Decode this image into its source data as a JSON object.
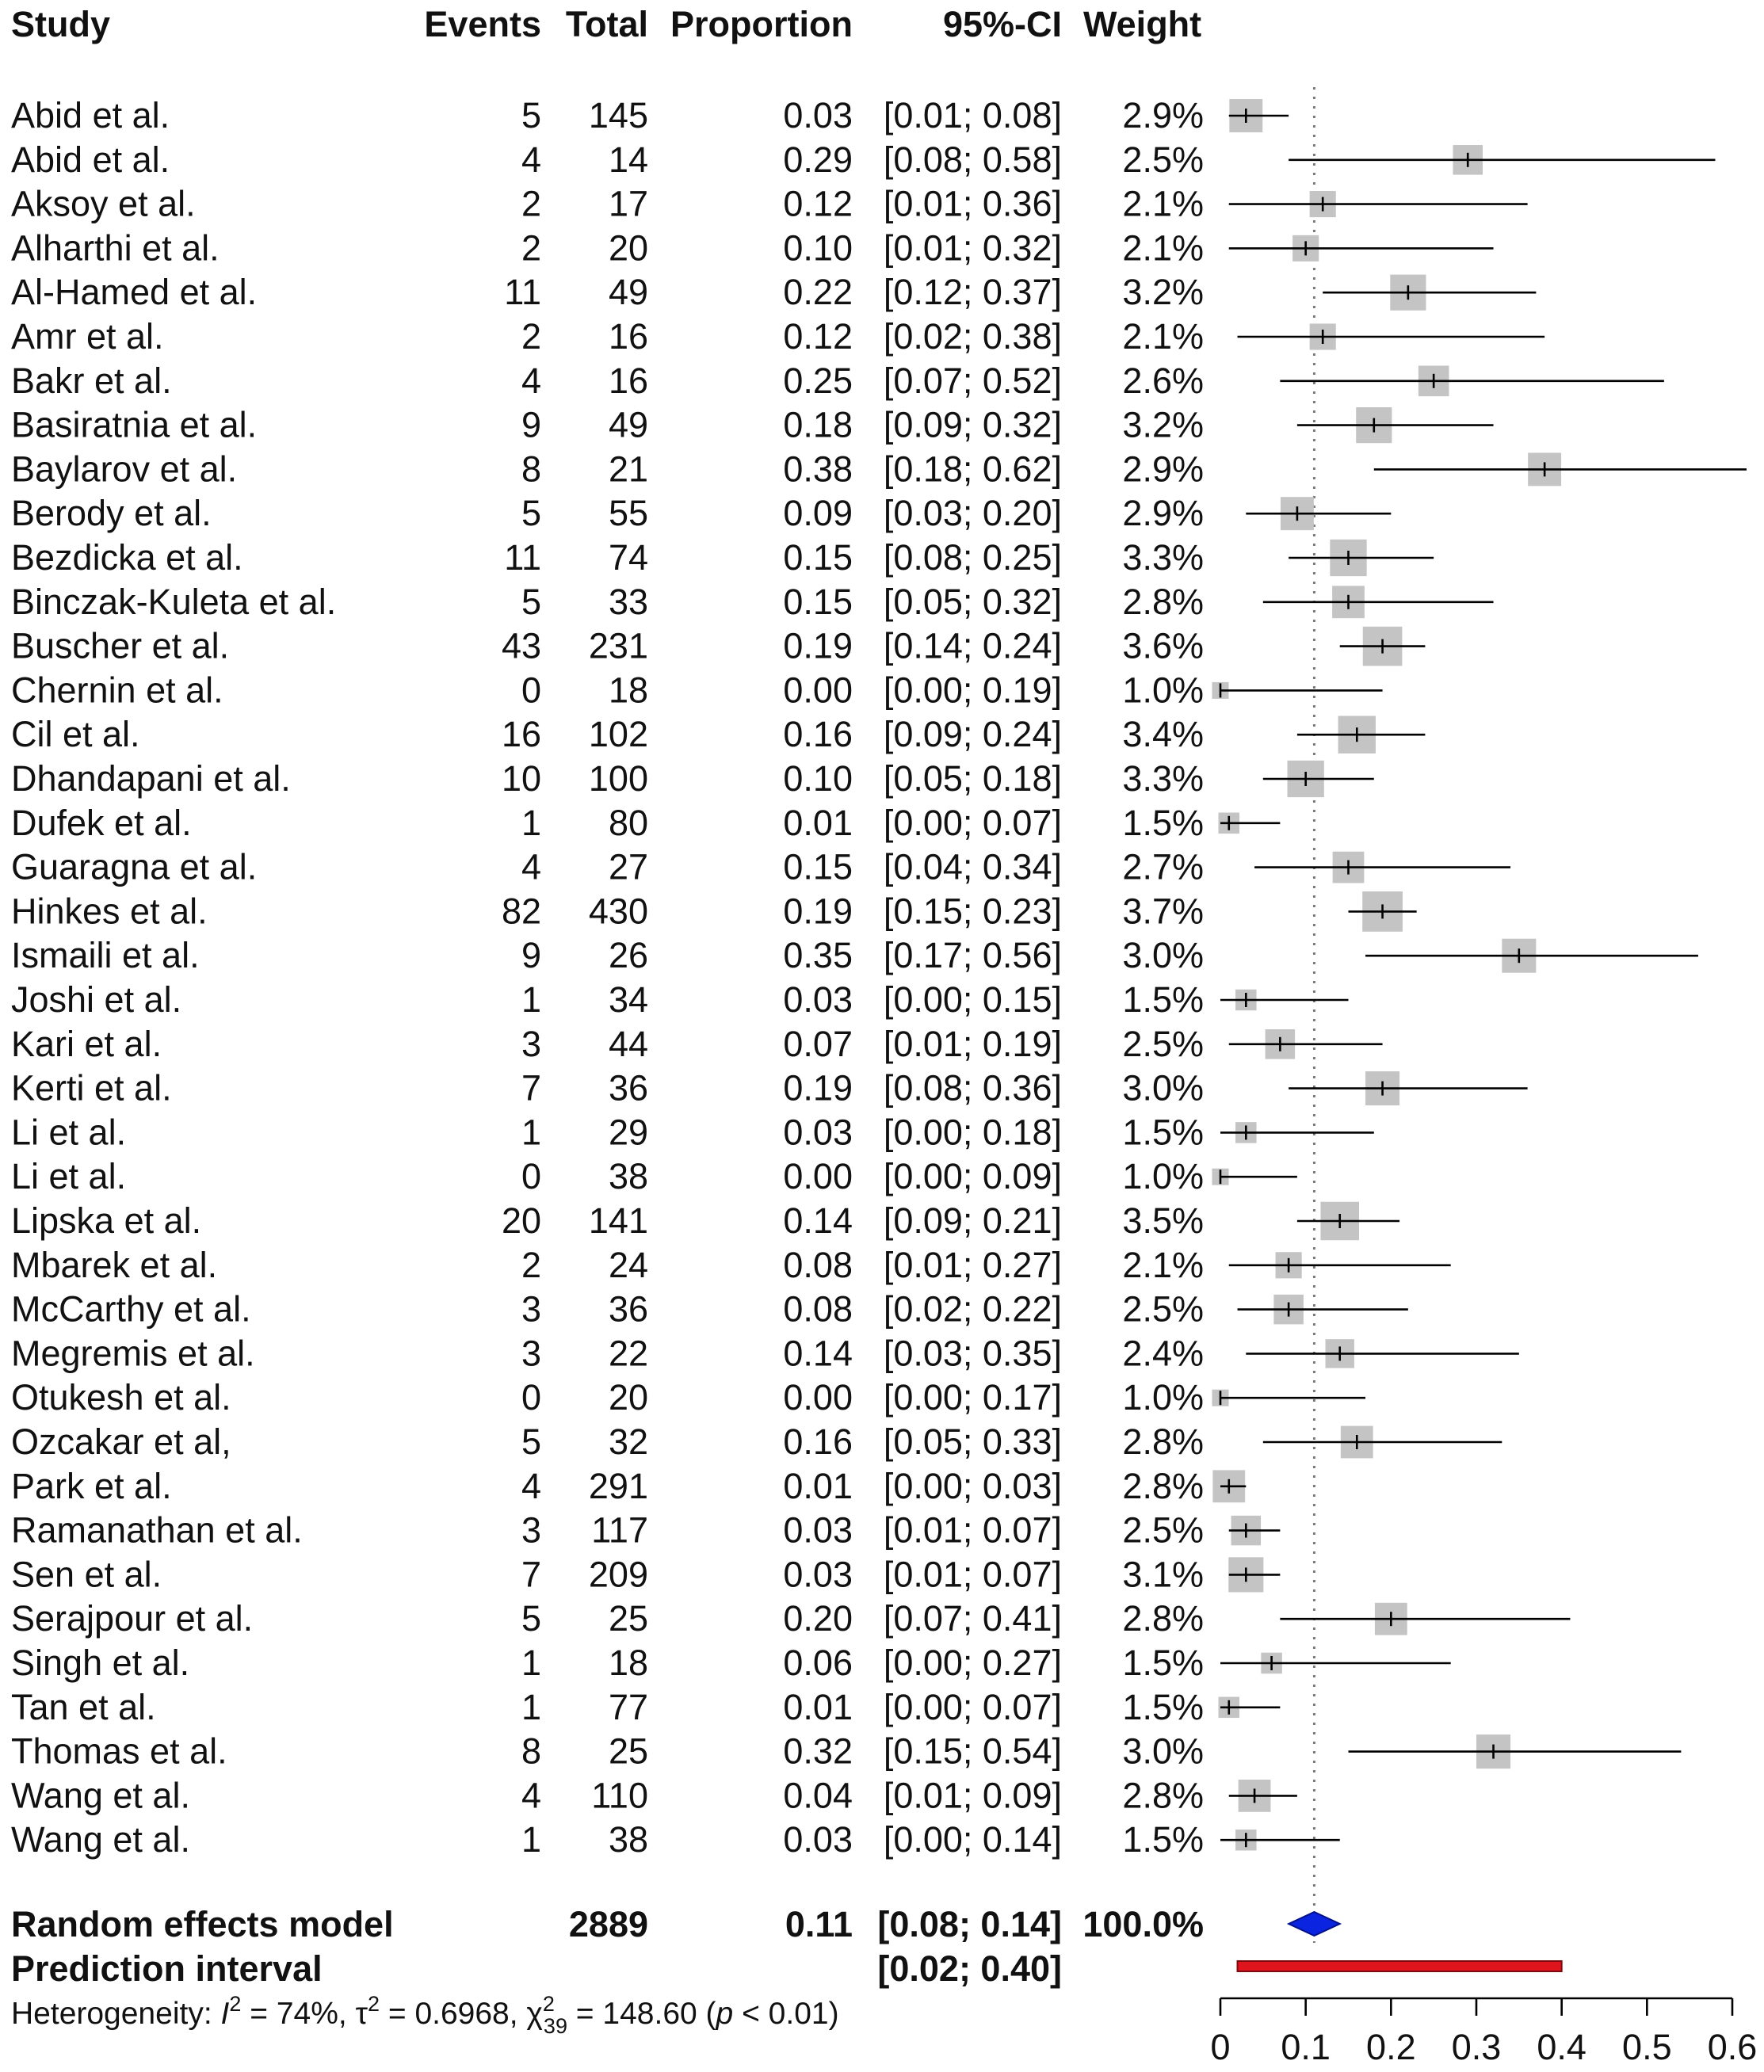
{
  "chart_data": {
    "type": "forest",
    "headers": {
      "study": "Study",
      "events": "Events",
      "total": "Total",
      "proportion": "Proportion",
      "ci": "95%-CI",
      "weight": "Weight"
    },
    "studies": [
      {
        "name": "Abid et al.",
        "events": "5",
        "total": "145",
        "prop": 0.03,
        "lo": 0.01,
        "hi": 0.08,
        "prop_text": "0.03",
        "ci_text": "[0.01; 0.08]",
        "weight_text": "2.9%",
        "weight": 2.9
      },
      {
        "name": "Abid et al.",
        "events": "4",
        "total": "14",
        "prop": 0.29,
        "lo": 0.08,
        "hi": 0.58,
        "prop_text": "0.29",
        "ci_text": "[0.08; 0.58]",
        "weight_text": "2.5%",
        "weight": 2.5
      },
      {
        "name": "Aksoy et al.",
        "events": "2",
        "total": "17",
        "prop": 0.12,
        "lo": 0.01,
        "hi": 0.36,
        "prop_text": "0.12",
        "ci_text": "[0.01; 0.36]",
        "weight_text": "2.1%",
        "weight": 2.1
      },
      {
        "name": "Alharthi et al.",
        "events": "2",
        "total": "20",
        "prop": 0.1,
        "lo": 0.01,
        "hi": 0.32,
        "prop_text": "0.10",
        "ci_text": "[0.01; 0.32]",
        "weight_text": "2.1%",
        "weight": 2.1
      },
      {
        "name": "Al-Hamed et al.",
        "events": "11",
        "total": "49",
        "prop": 0.22,
        "lo": 0.12,
        "hi": 0.37,
        "prop_text": "0.22",
        "ci_text": "[0.12; 0.37]",
        "weight_text": "3.2%",
        "weight": 3.2
      },
      {
        "name": "Amr et al.",
        "events": "2",
        "total": "16",
        "prop": 0.12,
        "lo": 0.02,
        "hi": 0.38,
        "prop_text": "0.12",
        "ci_text": "[0.02; 0.38]",
        "weight_text": "2.1%",
        "weight": 2.1
      },
      {
        "name": "Bakr et al.",
        "events": "4",
        "total": "16",
        "prop": 0.25,
        "lo": 0.07,
        "hi": 0.52,
        "prop_text": "0.25",
        "ci_text": "[0.07; 0.52]",
        "weight_text": "2.6%",
        "weight": 2.6
      },
      {
        "name": "Basiratnia et al.",
        "events": "9",
        "total": "49",
        "prop": 0.18,
        "lo": 0.09,
        "hi": 0.32,
        "prop_text": "0.18",
        "ci_text": "[0.09; 0.32]",
        "weight_text": "3.2%",
        "weight": 3.2
      },
      {
        "name": "Baylarov et al.",
        "events": "8",
        "total": "21",
        "prop": 0.38,
        "lo": 0.18,
        "hi": 0.62,
        "prop_text": "0.38",
        "ci_text": "[0.18; 0.62]",
        "weight_text": "2.9%",
        "weight": 2.9
      },
      {
        "name": "Berody et al.",
        "events": "5",
        "total": "55",
        "prop": 0.09,
        "lo": 0.03,
        "hi": 0.2,
        "prop_text": "0.09",
        "ci_text": "[0.03; 0.20]",
        "weight_text": "2.9%",
        "weight": 2.9
      },
      {
        "name": "Bezdicka et al.",
        "events": "11",
        "total": "74",
        "prop": 0.15,
        "lo": 0.08,
        "hi": 0.25,
        "prop_text": "0.15",
        "ci_text": "[0.08; 0.25]",
        "weight_text": "3.3%",
        "weight": 3.3
      },
      {
        "name": "Binczak-Kuleta et al.",
        "events": "5",
        "total": "33",
        "prop": 0.15,
        "lo": 0.05,
        "hi": 0.32,
        "prop_text": "0.15",
        "ci_text": "[0.05; 0.32]",
        "weight_text": "2.8%",
        "weight": 2.8
      },
      {
        "name": "Buscher et al.",
        "events": "43",
        "total": "231",
        "prop": 0.19,
        "lo": 0.14,
        "hi": 0.24,
        "prop_text": "0.19",
        "ci_text": "[0.14; 0.24]",
        "weight_text": "3.6%",
        "weight": 3.6
      },
      {
        "name": "Chernin et al.",
        "events": "0",
        "total": "18",
        "prop": 0.0,
        "lo": 0.0,
        "hi": 0.19,
        "prop_text": "0.00",
        "ci_text": "[0.00; 0.19]",
        "weight_text": "1.0%",
        "weight": 1.0
      },
      {
        "name": "Cil et al.",
        "events": "16",
        "total": "102",
        "prop": 0.16,
        "lo": 0.09,
        "hi": 0.24,
        "prop_text": "0.16",
        "ci_text": "[0.09; 0.24]",
        "weight_text": "3.4%",
        "weight": 3.4
      },
      {
        "name": "Dhandapani et al.",
        "events": "10",
        "total": "100",
        "prop": 0.1,
        "lo": 0.05,
        "hi": 0.18,
        "prop_text": "0.10",
        "ci_text": "[0.05; 0.18]",
        "weight_text": "3.3%",
        "weight": 3.3
      },
      {
        "name": "Dufek et al.",
        "events": "1",
        "total": "80",
        "prop": 0.01,
        "lo": 0.0,
        "hi": 0.07,
        "prop_text": "0.01",
        "ci_text": "[0.00; 0.07]",
        "weight_text": "1.5%",
        "weight": 1.5
      },
      {
        "name": "Guaragna et al.",
        "events": "4",
        "total": "27",
        "prop": 0.15,
        "lo": 0.04,
        "hi": 0.34,
        "prop_text": "0.15",
        "ci_text": "[0.04; 0.34]",
        "weight_text": "2.7%",
        "weight": 2.7
      },
      {
        "name": "Hinkes et al.",
        "events": "82",
        "total": "430",
        "prop": 0.19,
        "lo": 0.15,
        "hi": 0.23,
        "prop_text": "0.19",
        "ci_text": "[0.15; 0.23]",
        "weight_text": "3.7%",
        "weight": 3.7
      },
      {
        "name": "Ismaili et al.",
        "events": "9",
        "total": "26",
        "prop": 0.35,
        "lo": 0.17,
        "hi": 0.56,
        "prop_text": "0.35",
        "ci_text": "[0.17; 0.56]",
        "weight_text": "3.0%",
        "weight": 3.0
      },
      {
        "name": "Joshi et al.",
        "events": "1",
        "total": "34",
        "prop": 0.03,
        "lo": 0.0,
        "hi": 0.15,
        "prop_text": "0.03",
        "ci_text": "[0.00; 0.15]",
        "weight_text": "1.5%",
        "weight": 1.5
      },
      {
        "name": "Kari et al.",
        "events": "3",
        "total": "44",
        "prop": 0.07,
        "lo": 0.01,
        "hi": 0.19,
        "prop_text": "0.07",
        "ci_text": "[0.01; 0.19]",
        "weight_text": "2.5%",
        "weight": 2.5
      },
      {
        "name": "Kerti et al.",
        "events": "7",
        "total": "36",
        "prop": 0.19,
        "lo": 0.08,
        "hi": 0.36,
        "prop_text": "0.19",
        "ci_text": "[0.08; 0.36]",
        "weight_text": "3.0%",
        "weight": 3.0
      },
      {
        "name": "Li et al.",
        "events": "1",
        "total": "29",
        "prop": 0.03,
        "lo": 0.0,
        "hi": 0.18,
        "prop_text": "0.03",
        "ci_text": "[0.00; 0.18]",
        "weight_text": "1.5%",
        "weight": 1.5
      },
      {
        "name": "Li et al.",
        "events": "0",
        "total": "38",
        "prop": 0.0,
        "lo": 0.0,
        "hi": 0.09,
        "prop_text": "0.00",
        "ci_text": "[0.00; 0.09]",
        "weight_text": "1.0%",
        "weight": 1.0
      },
      {
        "name": "Lipska et al.",
        "events": "20",
        "total": "141",
        "prop": 0.14,
        "lo": 0.09,
        "hi": 0.21,
        "prop_text": "0.14",
        "ci_text": "[0.09; 0.21]",
        "weight_text": "3.5%",
        "weight": 3.5
      },
      {
        "name": "Mbarek et al.",
        "events": "2",
        "total": "24",
        "prop": 0.08,
        "lo": 0.01,
        "hi": 0.27,
        "prop_text": "0.08",
        "ci_text": "[0.01; 0.27]",
        "weight_text": "2.1%",
        "weight": 2.1
      },
      {
        "name": "McCarthy et al.",
        "events": "3",
        "total": "36",
        "prop": 0.08,
        "lo": 0.02,
        "hi": 0.22,
        "prop_text": "0.08",
        "ci_text": "[0.02; 0.22]",
        "weight_text": "2.5%",
        "weight": 2.5
      },
      {
        "name": "Megremis et al.",
        "events": "3",
        "total": "22",
        "prop": 0.14,
        "lo": 0.03,
        "hi": 0.35,
        "prop_text": "0.14",
        "ci_text": "[0.03; 0.35]",
        "weight_text": "2.4%",
        "weight": 2.4
      },
      {
        "name": "Otukesh et al.",
        "events": "0",
        "total": "20",
        "prop": 0.0,
        "lo": 0.0,
        "hi": 0.17,
        "prop_text": "0.00",
        "ci_text": "[0.00; 0.17]",
        "weight_text": "1.0%",
        "weight": 1.0
      },
      {
        "name": "Ozcakar et al,",
        "events": "5",
        "total": "32",
        "prop": 0.16,
        "lo": 0.05,
        "hi": 0.33,
        "prop_text": "0.16",
        "ci_text": "[0.05; 0.33]",
        "weight_text": "2.8%",
        "weight": 2.8
      },
      {
        "name": "Park et al.",
        "events": "4",
        "total": "291",
        "prop": 0.01,
        "lo": 0.0,
        "hi": 0.03,
        "prop_text": "0.01",
        "ci_text": "[0.00; 0.03]",
        "weight_text": "2.8%",
        "weight": 2.8
      },
      {
        "name": "Ramanathan et al.",
        "events": "3",
        "total": "117",
        "prop": 0.03,
        "lo": 0.01,
        "hi": 0.07,
        "prop_text": "0.03",
        "ci_text": "[0.01; 0.07]",
        "weight_text": "2.5%",
        "weight": 2.5
      },
      {
        "name": "Sen et al.",
        "events": "7",
        "total": "209",
        "prop": 0.03,
        "lo": 0.01,
        "hi": 0.07,
        "prop_text": "0.03",
        "ci_text": "[0.01; 0.07]",
        "weight_text": "3.1%",
        "weight": 3.1
      },
      {
        "name": "Serajpour et al.",
        "events": "5",
        "total": "25",
        "prop": 0.2,
        "lo": 0.07,
        "hi": 0.41,
        "prop_text": "0.20",
        "ci_text": "[0.07; 0.41]",
        "weight_text": "2.8%",
        "weight": 2.8
      },
      {
        "name": "Singh et al.",
        "events": "1",
        "total": "18",
        "prop": 0.06,
        "lo": 0.0,
        "hi": 0.27,
        "prop_text": "0.06",
        "ci_text": "[0.00; 0.27]",
        "weight_text": "1.5%",
        "weight": 1.5
      },
      {
        "name": "Tan et al.",
        "events": "1",
        "total": "77",
        "prop": 0.01,
        "lo": 0.0,
        "hi": 0.07,
        "prop_text": "0.01",
        "ci_text": "[0.00; 0.07]",
        "weight_text": "1.5%",
        "weight": 1.5
      },
      {
        "name": "Thomas et al.",
        "events": "8",
        "total": "25",
        "prop": 0.32,
        "lo": 0.15,
        "hi": 0.54,
        "prop_text": "0.32",
        "ci_text": "[0.15; 0.54]",
        "weight_text": "3.0%",
        "weight": 3.0
      },
      {
        "name": "Wang et al.",
        "events": "4",
        "total": "110",
        "prop": 0.04,
        "lo": 0.01,
        "hi": 0.09,
        "prop_text": "0.04",
        "ci_text": "[0.01; 0.09]",
        "weight_text": "2.8%",
        "weight": 2.8
      },
      {
        "name": "Wang et al.",
        "events": "1",
        "total": "38",
        "prop": 0.03,
        "lo": 0.0,
        "hi": 0.14,
        "prop_text": "0.03",
        "ci_text": "[0.00; 0.14]",
        "weight_text": "1.5%",
        "weight": 1.5
      }
    ],
    "summary": {
      "label": "Random effects model",
      "total": "2889",
      "prop": 0.11,
      "lo": 0.08,
      "hi": 0.14,
      "prop_text": "0.11",
      "ci_text": "[0.08; 0.14]",
      "weight_text": "100.0%"
    },
    "prediction": {
      "label": "Prediction interval",
      "lo": 0.02,
      "hi": 0.4,
      "ci_text": "[0.02; 0.40]"
    },
    "heterogeneity": {
      "prefix": "Heterogeneity: ",
      "i2_symbol": "I",
      "i2_sup": "2",
      "i2_value": " = 74%, ",
      "tau_symbol": "τ",
      "tau_sup": "2",
      "tau_value": " = 0.6968, ",
      "chi_symbol": "χ",
      "chi_sup": "2",
      "chi_sub": "39",
      "chi_value": " = 148.60 (",
      "p_symbol": "p",
      "p_value": " < 0.01)"
    },
    "axis": {
      "xlim": [
        0,
        0.6
      ],
      "ticks": [
        0,
        0.1,
        0.2,
        0.3,
        0.4,
        0.5,
        0.6
      ],
      "tick_labels": [
        "0",
        "0.1",
        "0.2",
        "0.3",
        "0.4",
        "0.5",
        "0.6"
      ],
      "reference_line": 0.11
    },
    "colors": {
      "square": "#c4c4c4",
      "ci_line": "#000000",
      "ci_line_grey": "#777777",
      "diamond": "#0a24e0",
      "prediction": "#e0141c",
      "reference": "#7a7a7a"
    }
  }
}
